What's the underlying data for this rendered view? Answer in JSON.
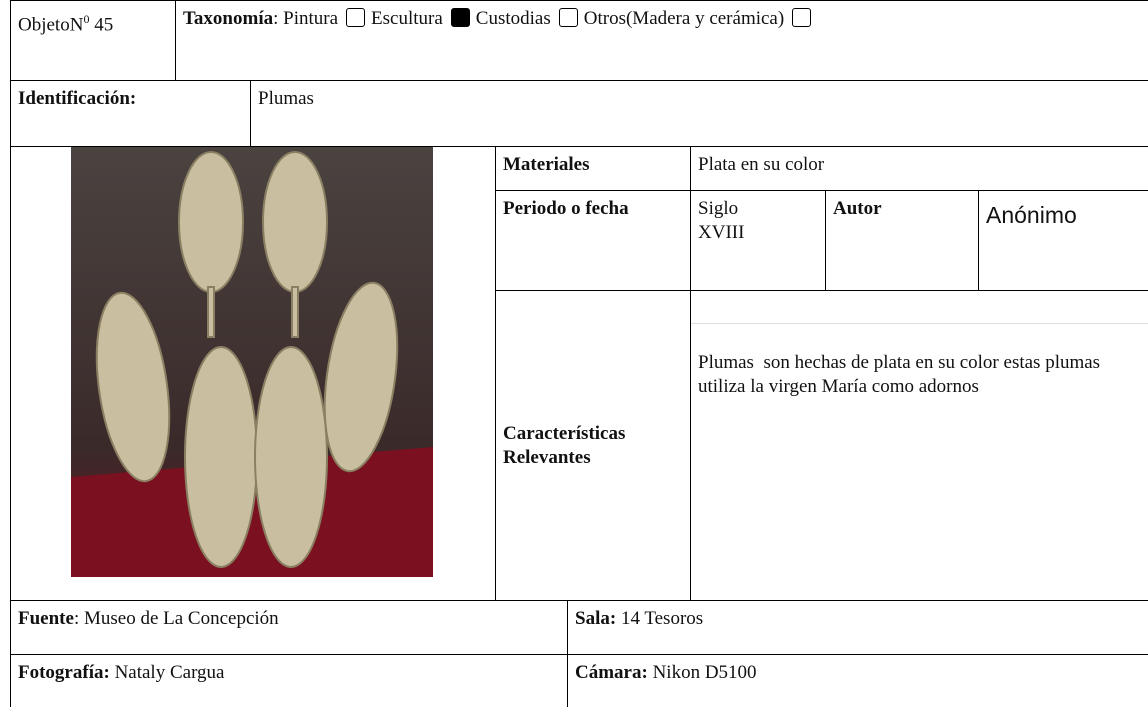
{
  "header": {
    "object_label": "ObjetoN",
    "object_sup": "0",
    "object_number": "45",
    "taxonomy_label": "Taxonomía",
    "options": [
      {
        "label": "Pintura",
        "checked": false
      },
      {
        "label": "Escultura",
        "checked": true
      },
      {
        "label": "Custodias",
        "checked": false
      },
      {
        "label": "Otros(Madera y cerámica)",
        "checked": false
      }
    ]
  },
  "identification": {
    "label": "Identificación:",
    "value": "Plumas"
  },
  "details": {
    "materials_label": "Materiales",
    "materials": "Plata en su color",
    "period_label": "Periodo o fecha",
    "period": "Siglo XVIII",
    "author_label": "Autor",
    "author": "Anónimo",
    "features_label": "Características Relevantes",
    "features": "Plumas  son hechas de plata en su color estas plumas utiliza la virgen María como adornos"
  },
  "footer": {
    "source_label": "Fuente",
    "source": "Museo de La Concepción",
    "room_label": "Sala:",
    "room": "14 Tesoros",
    "photo_label": "Fotografía:",
    "photo": "Nataly Cargua",
    "camera_label": "Cámara:",
    "camera": "Nikon D5100"
  }
}
